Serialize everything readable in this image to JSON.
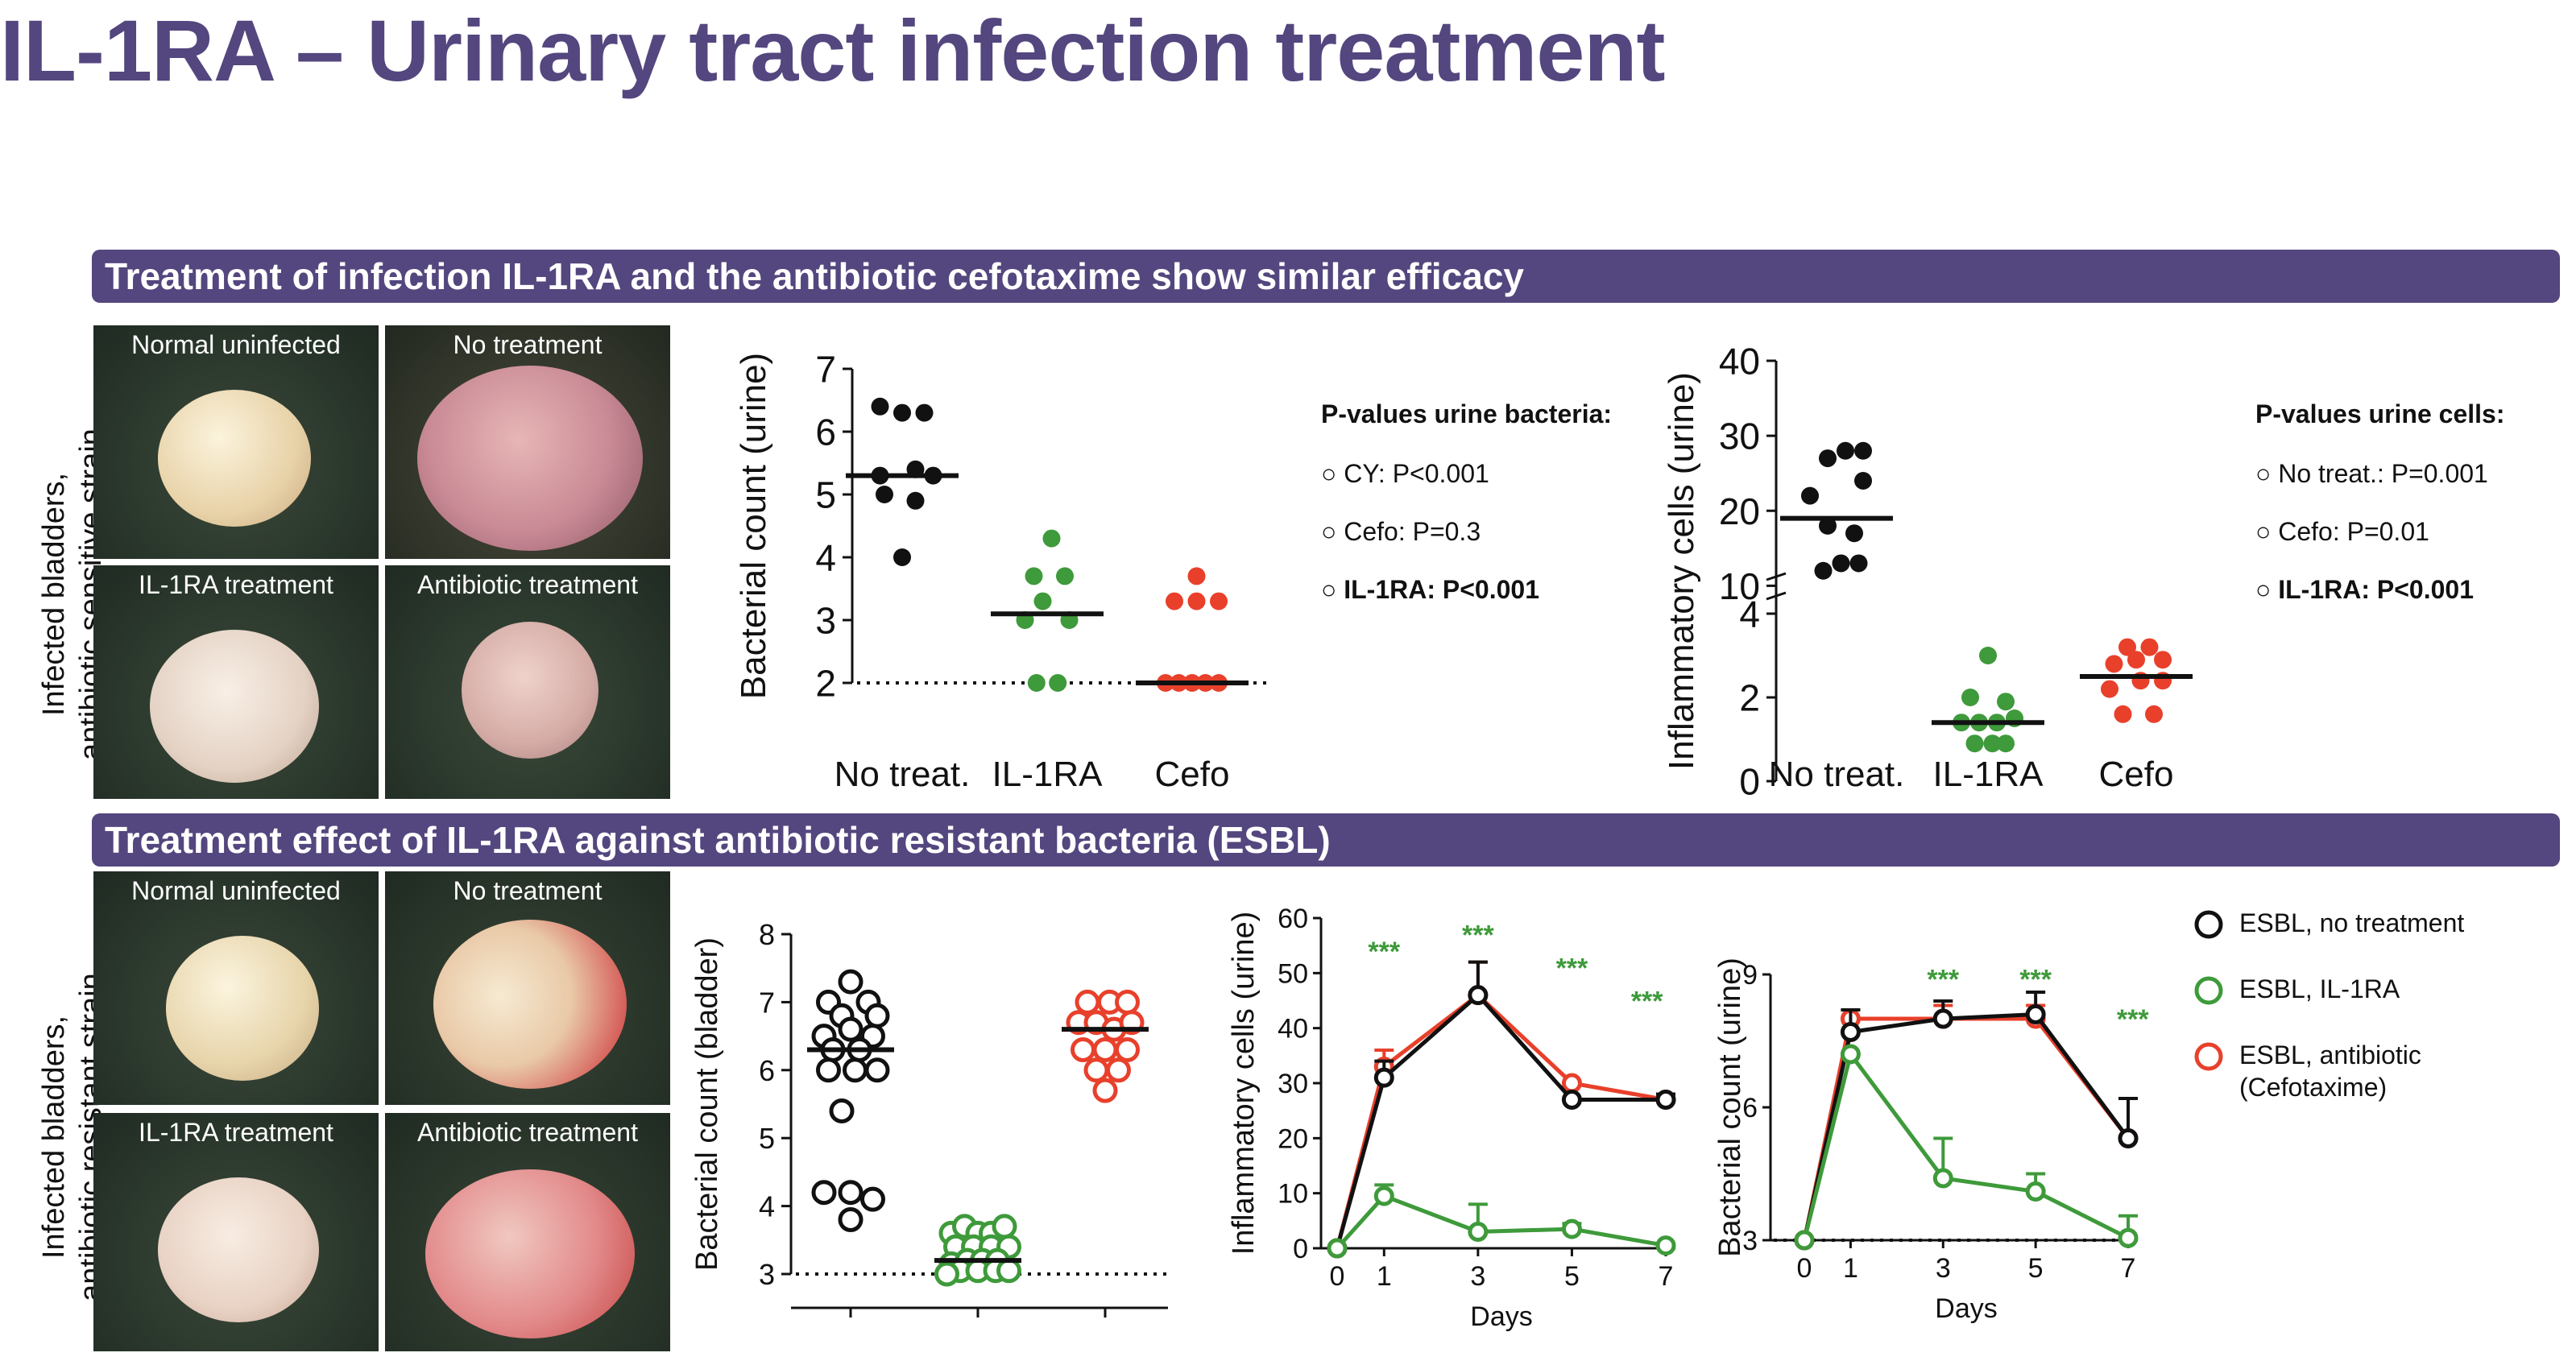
{
  "title": "IL-1RA – Urinary tract infection treatment",
  "section1": {
    "banner": "Treatment of infection IL-1RA and the antibiotic cefotaxime show similar efficacy",
    "side_label": [
      "Infected bladders,",
      "antibiotic sensitive strain"
    ],
    "photos": [
      "Normal uninfected",
      "No treatment",
      "IL-1RA treatment",
      "Antibiotic treatment"
    ]
  },
  "section2": {
    "banner": "Treatment effect of IL-1RA against antibiotic resistant bacteria (ESBL)",
    "side_label": [
      "Infected bladders,",
      "antibiotic resistant strain"
    ],
    "photos": [
      "Normal uninfected",
      "No treatment",
      "IL-1RA treatment",
      "Antibiotic treatment"
    ]
  },
  "pvalues_bacteria": {
    "title": "P-values urine bacteria:",
    "items": [
      "CY: P<0.001",
      "Cefo: P=0.3",
      "IL-1RA: P<0.001"
    ],
    "bullet": "○"
  },
  "pvalues_cells": {
    "title": "P-values urine cells:",
    "items": [
      "No treat.: P=0.001",
      "Cefo: P=0.01",
      "IL-1RA: P<0.001"
    ],
    "bullet": "○"
  },
  "legend": {
    "items": [
      {
        "label": "ESBL, no treatment",
        "color": "#111111"
      },
      {
        "label": "ESBL, IL-1RA",
        "color": "#3e9a3a"
      },
      {
        "label": "ESBL, antibiotic",
        "label2": "(Cefotaxime)",
        "color": "#e8402b"
      }
    ]
  },
  "colors": {
    "black": "#111111",
    "green": "#3e9a3a",
    "red": "#e8402b",
    "purple": "#54467e"
  },
  "chart_data": [
    {
      "id": "bact_urine",
      "type": "scatter",
      "ylabel": "Bacterial count (urine)",
      "categories": [
        "No treat.",
        "IL-1RA",
        "Cefo"
      ],
      "ylim": [
        2,
        7
      ],
      "yticks": [
        2,
        3,
        4,
        5,
        6,
        7
      ],
      "reference_line": 2,
      "series": [
        {
          "name": "No treat.",
          "color": "#111111",
          "median": 5.3,
          "points": [
            [
              -0.25,
              6.4
            ],
            [
              0,
              6.3
            ],
            [
              0.25,
              6.3
            ],
            [
              -0.25,
              5.3
            ],
            [
              0.15,
              5.4
            ],
            [
              0.35,
              5.3
            ],
            [
              -0.2,
              5.0
            ],
            [
              0.15,
              4.9
            ],
            [
              0,
              4.0
            ]
          ]
        },
        {
          "name": "IL-1RA",
          "color": "#3e9a3a",
          "median": 3.1,
          "points": [
            [
              0.05,
              4.3
            ],
            [
              -0.15,
              3.7
            ],
            [
              0.2,
              3.7
            ],
            [
              -0.05,
              3.3
            ],
            [
              -0.25,
              3.0
            ],
            [
              0.25,
              3.0
            ],
            [
              -0.12,
              2.0
            ],
            [
              0.12,
              2.0
            ]
          ]
        },
        {
          "name": "Cefo",
          "color": "#e8402b",
          "median": 2.0,
          "points": [
            [
              0.05,
              3.7
            ],
            [
              -0.2,
              3.3
            ],
            [
              0.05,
              3.3
            ],
            [
              0.3,
              3.3
            ],
            [
              -0.3,
              2.0
            ],
            [
              -0.15,
              2.0
            ],
            [
              0,
              2.0
            ],
            [
              0.15,
              2.0
            ],
            [
              0.3,
              2.0
            ]
          ]
        }
      ]
    },
    {
      "id": "cells_urine",
      "type": "scatter",
      "ylabel": "Inflammatory cells (urine)",
      "categories": [
        "No treat.",
        "IL-1RA",
        "Cefo"
      ],
      "ylim": [
        0,
        40
      ],
      "axis_break": [
        5,
        8
      ],
      "yticks": [
        0,
        2,
        4,
        10,
        20,
        30,
        40
      ],
      "series": [
        {
          "name": "No treat.",
          "color": "#111111",
          "median": 19,
          "points": [
            [
              -0.1,
              27
            ],
            [
              0.1,
              28
            ],
            [
              0.3,
              28
            ],
            [
              -0.3,
              22
            ],
            [
              0.3,
              24
            ],
            [
              -0.1,
              18
            ],
            [
              0.2,
              17
            ],
            [
              -0.15,
              12
            ],
            [
              0.05,
              13
            ],
            [
              0.25,
              13
            ]
          ]
        },
        {
          "name": "IL-1RA",
          "color": "#3e9a3a",
          "median": 1.4,
          "points": [
            [
              0,
              3.0
            ],
            [
              -0.2,
              2.0
            ],
            [
              0.2,
              1.9
            ],
            [
              -0.3,
              1.4
            ],
            [
              -0.1,
              1.4
            ],
            [
              0.1,
              1.4
            ],
            [
              0.3,
              1.5
            ],
            [
              -0.15,
              0.9
            ],
            [
              0.05,
              0.9
            ],
            [
              0.2,
              0.9
            ]
          ]
        },
        {
          "name": "Cefo",
          "color": "#e8402b",
          "median": 2.5,
          "points": [
            [
              -0.1,
              3.2
            ],
            [
              0.15,
              3.2
            ],
            [
              -0.25,
              2.8
            ],
            [
              0,
              2.9
            ],
            [
              0.3,
              2.9
            ],
            [
              -0.3,
              2.2
            ],
            [
              0.05,
              2.4
            ],
            [
              0.3,
              2.4
            ],
            [
              -0.15,
              1.6
            ],
            [
              0.2,
              1.6
            ]
          ]
        }
      ]
    },
    {
      "id": "bact_bladder",
      "type": "scatter",
      "ylabel": "Bacterial count (bladder)",
      "categories": [
        "",
        "",
        ""
      ],
      "ylim": [
        3,
        8
      ],
      "yticks": [
        3,
        4,
        5,
        6,
        7,
        8
      ],
      "reference_line": 3,
      "series": [
        {
          "name": "ESBL, no treatment",
          "color": "#111111",
          "median": 6.3,
          "hollow": true,
          "points": [
            [
              0,
              7.3
            ],
            [
              -0.25,
              7.0
            ],
            [
              0.2,
              7.0
            ],
            [
              -0.1,
              6.8
            ],
            [
              0.3,
              6.8
            ],
            [
              -0.3,
              6.5
            ],
            [
              0,
              6.6
            ],
            [
              0.25,
              6.5
            ],
            [
              -0.2,
              6.3
            ],
            [
              0.1,
              6.3
            ],
            [
              -0.25,
              6.0
            ],
            [
              0.05,
              6.0
            ],
            [
              0.3,
              6.0
            ],
            [
              -0.1,
              5.4
            ],
            [
              -0.3,
              4.2
            ],
            [
              0,
              4.2
            ],
            [
              0.25,
              4.1
            ],
            [
              0,
              3.8
            ]
          ]
        },
        {
          "name": "ESBL, IL-1RA",
          "color": "#3e9a3a",
          "median": 3.2,
          "hollow": true,
          "points": [
            [
              -0.3,
              3.6
            ],
            [
              -0.15,
              3.7
            ],
            [
              0,
              3.6
            ],
            [
              0.15,
              3.6
            ],
            [
              0.3,
              3.7
            ],
            [
              -0.25,
              3.4
            ],
            [
              -0.05,
              3.4
            ],
            [
              0.15,
              3.4
            ],
            [
              0.35,
              3.4
            ],
            [
              -0.3,
              3.15
            ],
            [
              -0.12,
              3.2
            ],
            [
              0.05,
              3.2
            ],
            [
              0.22,
              3.2
            ],
            [
              -0.2,
              3.05
            ],
            [
              0,
              3.05
            ],
            [
              0.2,
              3.05
            ],
            [
              0.35,
              3.05
            ],
            [
              -0.35,
              3.0
            ]
          ]
        },
        {
          "name": "ESBL, antibiotic",
          "color": "#e8402b",
          "median": 6.6,
          "hollow": true,
          "points": [
            [
              -0.2,
              7.0
            ],
            [
              0.05,
              7.0
            ],
            [
              0.25,
              7.0
            ],
            [
              -0.3,
              6.7
            ],
            [
              -0.1,
              6.7
            ],
            [
              0.1,
              6.6
            ],
            [
              0.3,
              6.7
            ],
            [
              -0.25,
              6.3
            ],
            [
              0,
              6.3
            ],
            [
              0.25,
              6.3
            ],
            [
              -0.1,
              6.0
            ],
            [
              0.15,
              6.0
            ],
            [
              0,
              5.7
            ]
          ]
        }
      ]
    },
    {
      "id": "cells_time",
      "type": "line",
      "xlabel": "Days",
      "ylabel": "Inflammatory cells (urine)",
      "x": [
        0,
        1,
        3,
        5,
        7
      ],
      "ylim": [
        0,
        60
      ],
      "yticks": [
        0,
        10,
        20,
        30,
        40,
        50,
        60
      ],
      "annotations": [
        {
          "x": 1,
          "y": 54,
          "text": "***",
          "color": "#3e9a3a"
        },
        {
          "x": 3,
          "y": 57,
          "text": "***",
          "color": "#3e9a3a"
        },
        {
          "x": 5,
          "y": 51,
          "text": "***",
          "color": "#3e9a3a"
        },
        {
          "x": 6.6,
          "y": 45,
          "text": "***",
          "color": "#3e9a3a"
        }
      ],
      "series": [
        {
          "name": "ESBL, antibiotic",
          "color": "#e8402b",
          "values": [
            0,
            33,
            46,
            30,
            27
          ],
          "err": [
            0,
            3,
            6,
            0,
            1
          ]
        },
        {
          "name": "ESBL, no treatment",
          "color": "#111111",
          "values": [
            0,
            31,
            46,
            27,
            27
          ],
          "err": [
            0,
            3,
            6,
            0,
            1
          ]
        },
        {
          "name": "ESBL, IL-1RA",
          "color": "#3e9a3a",
          "values": [
            0,
            9.5,
            3,
            3.5,
            0.5
          ],
          "err": [
            0,
            2,
            5,
            1,
            0
          ]
        }
      ]
    },
    {
      "id": "bact_time",
      "type": "line",
      "xlabel": "Days",
      "ylabel": "Bacterial count (urine)",
      "x": [
        0,
        1,
        3,
        5,
        7
      ],
      "ylim": [
        3,
        9
      ],
      "yticks": [
        3,
        6,
        9
      ],
      "reference_line": 3,
      "annotations": [
        {
          "x": 3,
          "y": 8.9,
          "text": "***",
          "color": "#3e9a3a"
        },
        {
          "x": 5,
          "y": 8.9,
          "text": "***",
          "color": "#3e9a3a"
        },
        {
          "x": 7.1,
          "y": 8.0,
          "text": "***",
          "color": "#3e9a3a"
        }
      ],
      "series": [
        {
          "name": "ESBL, antibiotic",
          "color": "#e8402b",
          "values": [
            3,
            8.0,
            8.0,
            8.0,
            5.3
          ],
          "err": [
            0,
            0.2,
            0.3,
            0.3,
            0.9
          ]
        },
        {
          "name": "ESBL, no treatment",
          "color": "#111111",
          "values": [
            3,
            7.7,
            8.0,
            8.1,
            5.3
          ],
          "err": [
            0,
            0.5,
            0.4,
            0.5,
            0.9
          ]
        },
        {
          "name": "ESBL, IL-1RA",
          "color": "#3e9a3a",
          "values": [
            3,
            7.2,
            4.4,
            4.1,
            3.05
          ],
          "err": [
            0,
            0,
            0.9,
            0.4,
            0.5
          ]
        }
      ]
    }
  ]
}
